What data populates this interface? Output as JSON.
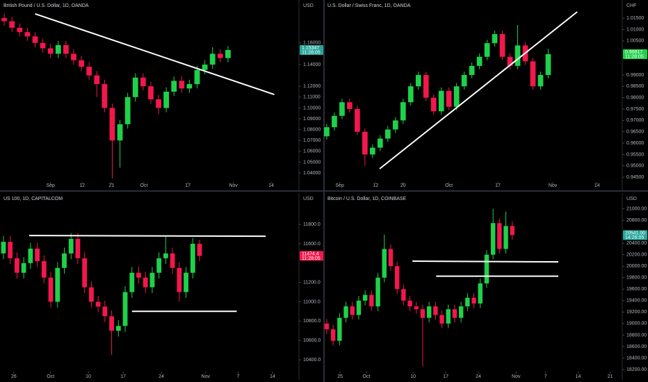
{
  "chart_data": [
    {
      "type": "candlestick",
      "title": "British Pound / U.S. Dollar, 1D, OANDA",
      "unit": "USD",
      "up_color": "#1fd14a",
      "down_color": "#f2174c",
      "line_color": "#ffffff",
      "open": [
        1.183,
        1.18,
        1.174,
        1.17,
        1.166,
        1.16,
        1.155,
        1.15,
        1.158,
        1.15,
        1.144,
        1.138,
        1.13,
        1.122,
        1.1,
        1.07,
        1.085,
        1.11,
        1.128,
        1.12,
        1.108,
        1.1,
        1.115,
        1.125,
        1.118,
        1.122,
        1.135,
        1.14,
        1.15,
        1.146
      ],
      "high": [
        1.187,
        1.184,
        1.178,
        1.174,
        1.17,
        1.164,
        1.159,
        1.162,
        1.162,
        1.154,
        1.148,
        1.142,
        1.134,
        1.126,
        1.104,
        1.089,
        1.114,
        1.132,
        1.132,
        1.124,
        1.112,
        1.119,
        1.129,
        1.129,
        1.126,
        1.139,
        1.144,
        1.156,
        1.154,
        1.157
      ],
      "low": [
        1.176,
        1.17,
        1.166,
        1.162,
        1.156,
        1.151,
        1.146,
        1.146,
        1.146,
        1.14,
        1.134,
        1.126,
        1.11,
        1.096,
        1.035,
        1.045,
        1.081,
        1.106,
        1.116,
        1.104,
        1.094,
        1.096,
        1.111,
        1.114,
        1.114,
        1.118,
        1.131,
        1.136,
        1.142,
        1.142
      ],
      "close": [
        1.18,
        1.174,
        1.17,
        1.166,
        1.16,
        1.155,
        1.15,
        1.158,
        1.15,
        1.144,
        1.138,
        1.13,
        1.122,
        1.1,
        1.07,
        1.085,
        1.11,
        1.128,
        1.12,
        1.108,
        1.1,
        1.115,
        1.125,
        1.118,
        1.122,
        1.135,
        1.14,
        1.15,
        1.146,
        1.15347
      ],
      "xlim": [
        -0.55,
        38.2
      ],
      "xticks": [
        {
          "value": 6.0,
          "label": "Sep"
        },
        {
          "value": 10.1,
          "label": "12"
        },
        {
          "value": 13.9,
          "label": "21"
        },
        {
          "value": 18.1,
          "label": "Oct"
        },
        {
          "value": 23.8,
          "label": "17"
        },
        {
          "value": 29.7,
          "label": "Nov"
        },
        {
          "value": 34.6,
          "label": "14"
        }
      ],
      "ylim": [
        1.0317,
        1.1996
      ],
      "yticks": [
        {
          "value": 1.04,
          "label": "1.04000"
        },
        {
          "value": 1.05,
          "label": "1.05000"
        },
        {
          "value": 1.06,
          "label": "1.06000"
        },
        {
          "value": 1.07,
          "label": "1.07000"
        },
        {
          "value": 1.08,
          "label": "1.08000"
        },
        {
          "value": 1.09,
          "label": "1.09000"
        },
        {
          "value": 1.1,
          "label": "1.10000"
        },
        {
          "value": 1.11,
          "label": "1.11000"
        },
        {
          "value": 1.12,
          "label": "1.12000"
        },
        {
          "value": 1.14,
          "label": "1.14000"
        },
        {
          "value": 1.16,
          "label": "1.16000"
        }
      ],
      "last_label": "1.15347",
      "countdown": "11:28:05",
      "last_color": "#26a69a",
      "lines": [
        {
          "x": [
            4.0,
            35.0
          ],
          "y": [
            1.1868,
            1.1124
          ]
        }
      ]
    },
    {
      "type": "candlestick",
      "title": "U.S. Dollar / Swiss Franc, 1D, OANDA",
      "unit": "CHF",
      "up_color": "#1fd14a",
      "down_color": "#f2174c",
      "line_color": "#ffffff",
      "open": [
        0.963,
        0.967,
        0.972,
        0.978,
        0.975,
        0.965,
        0.955,
        0.958,
        0.962,
        0.966,
        0.97,
        0.978,
        0.985,
        0.99,
        0.98,
        0.974,
        0.983,
        0.976,
        0.985,
        0.99,
        0.994,
        0.998,
        1.004,
        1.008,
        0.998,
        0.994,
        1.003,
        0.996,
        0.985,
        0.99
      ],
      "high": [
        0.9685,
        0.9735,
        0.9795,
        0.9795,
        0.9765,
        0.9665,
        0.9595,
        0.9635,
        0.9675,
        0.9715,
        0.9795,
        0.9865,
        0.9915,
        0.9915,
        0.9815,
        0.9845,
        0.9845,
        0.9865,
        0.9915,
        0.9955,
        0.9995,
        1.0055,
        1.0095,
        1.0095,
        0.9995,
        1.012,
        1.0045,
        0.9975,
        0.9915,
        1.0015
      ],
      "low": [
        0.9615,
        0.9655,
        0.9705,
        0.9735,
        0.9635,
        0.95,
        0.9535,
        0.9565,
        0.9605,
        0.9645,
        0.9685,
        0.9765,
        0.9835,
        0.9785,
        0.9725,
        0.9725,
        0.9745,
        0.9745,
        0.9835,
        0.9885,
        0.9925,
        0.9965,
        1.0025,
        0.9965,
        0.9925,
        0.9925,
        0.9945,
        0.9835,
        0.9835,
        0.9885
      ],
      "close": [
        0.967,
        0.972,
        0.978,
        0.975,
        0.965,
        0.955,
        0.958,
        0.962,
        0.966,
        0.97,
        0.978,
        0.985,
        0.99,
        0.98,
        0.974,
        0.983,
        0.976,
        0.985,
        0.99,
        0.994,
        0.998,
        1.004,
        1.008,
        0.998,
        0.994,
        1.003,
        0.996,
        0.985,
        0.99,
        0.99917
      ],
      "xlim": [
        -0.36,
        38.7
      ],
      "xticks": [
        {
          "value": 1.7,
          "label": "Sep"
        },
        {
          "value": 6.4,
          "label": "12"
        },
        {
          "value": 10.0,
          "label": "20"
        },
        {
          "value": 16.0,
          "label": "Oct"
        },
        {
          "value": 22.4,
          "label": "17"
        },
        {
          "value": 29.6,
          "label": "Nov"
        },
        {
          "value": 35.4,
          "label": "14"
        }
      ],
      "ylim": [
        0.9429,
        1.023
      ],
      "yticks": [
        {
          "value": 0.945,
          "label": "0.94500"
        },
        {
          "value": 0.95,
          "label": "0.95000"
        },
        {
          "value": 0.955,
          "label": "0.95500"
        },
        {
          "value": 0.96,
          "label": "0.96000"
        },
        {
          "value": 0.965,
          "label": "0.96500"
        },
        {
          "value": 0.97,
          "label": "0.97000"
        },
        {
          "value": 0.975,
          "label": "0.97500"
        },
        {
          "value": 0.98,
          "label": "0.98000"
        },
        {
          "value": 0.985,
          "label": "0.98500"
        },
        {
          "value": 0.99,
          "label": "0.99000"
        },
        {
          "value": 1.005,
          "label": "1.00500"
        },
        {
          "value": 1.01,
          "label": "1.01000"
        },
        {
          "value": 1.015,
          "label": "1.01500"
        }
      ],
      "last_label": "0.99917",
      "countdown": "11:28:05",
      "last_color": "#1fd14a",
      "lines": [
        {
          "x": [
            6.93,
            32.8
          ],
          "y": [
            0.9487,
            1.0178
          ]
        }
      ]
    },
    {
      "type": "candlestick",
      "title": "US 100, 1D, CAPITALCOM",
      "unit": "USD",
      "up_color": "#1fd14a",
      "down_color": "#f2174c",
      "line_color": "#ffffff",
      "open": [
        11500,
        11620,
        11450,
        11300,
        11400,
        11550,
        11420,
        11250,
        11000,
        11350,
        11500,
        11650,
        11450,
        11150,
        11000,
        10950,
        10850,
        10700,
        10750,
        11100,
        11300,
        11250,
        11150,
        11300,
        11450,
        11500,
        11350,
        11100,
        11300,
        11600
      ],
      "high": [
        11680,
        11680,
        11510,
        11460,
        11610,
        11610,
        11480,
        11310,
        11410,
        11560,
        11710,
        11710,
        11510,
        11210,
        11060,
        11010,
        10910,
        10810,
        11160,
        11360,
        11360,
        11310,
        11360,
        11510,
        11680,
        11560,
        11410,
        11360,
        11660,
        11640
      ],
      "low": [
        11440,
        11390,
        11240,
        11240,
        11340,
        11360,
        11190,
        10940,
        10940,
        11290,
        11440,
        11390,
        11090,
        10940,
        10890,
        10790,
        10450,
        10640,
        10690,
        11040,
        11190,
        11090,
        11090,
        11240,
        11390,
        11290,
        11000,
        11040,
        11240,
        11420
      ],
      "close": [
        11620,
        11450,
        11300,
        11400,
        11550,
        11420,
        11250,
        11000,
        11350,
        11500,
        11650,
        11450,
        11150,
        11000,
        10950,
        10850,
        10700,
        10750,
        11100,
        11300,
        11250,
        11150,
        11300,
        11450,
        11500,
        11350,
        11100,
        11300,
        11600,
        11474.4
      ],
      "xlim": [
        -0.51,
        43.7
      ],
      "xticks": [
        {
          "value": 1.54,
          "label": "26"
        },
        {
          "value": 6.97,
          "label": "Oct"
        },
        {
          "value": 12.55,
          "label": "10"
        },
        {
          "value": 17.7,
          "label": "17"
        },
        {
          "value": 23.35,
          "label": "24"
        },
        {
          "value": 29.9,
          "label": "Nov"
        },
        {
          "value": 34.7,
          "label": "7"
        },
        {
          "value": 39.8,
          "label": "14"
        }
      ],
      "ylim": [
        10278,
        12124
      ],
      "yticks": [
        {
          "value": 10400,
          "label": "10400.0"
        },
        {
          "value": 10600,
          "label": "10600.0"
        },
        {
          "value": 10800,
          "label": "10800.0"
        },
        {
          "value": 11000,
          "label": "11000.0"
        },
        {
          "value": 11200,
          "label": "11200.0"
        },
        {
          "value": 11600,
          "label": "11600.0"
        },
        {
          "value": 11800,
          "label": "11800.0"
        }
      ],
      "last_label": "11474.4",
      "countdown": "11:28:05",
      "last_color": "#f2174c",
      "lines": [
        {
          "x": [
            3.8,
            38.8
          ],
          "y": [
            11685,
            11678
          ]
        },
        {
          "x": [
            19.0,
            34.5
          ],
          "y": [
            10901,
            10901
          ]
        }
      ]
    },
    {
      "type": "candlestick",
      "title": "Bitcoin / U.S. Dollar, 1D, COINBASE",
      "unit": "USD",
      "up_color": "#1fd14a",
      "down_color": "#f2174c",
      "line_color": "#ffffff",
      "open": [
        19000,
        18900,
        18700,
        19100,
        19300,
        19150,
        19400,
        19500,
        19300,
        19800,
        20300,
        20000,
        19600,
        19400,
        19300,
        19250,
        19100,
        19300,
        19150,
        19000,
        19250,
        19100,
        19300,
        19450,
        19350,
        19700,
        20200,
        20750,
        20300,
        20700
      ],
      "high": [
        19080,
        18980,
        19180,
        19380,
        19380,
        19480,
        19580,
        19580,
        19880,
        20550,
        20380,
        20080,
        19680,
        19480,
        19380,
        19330,
        19380,
        19380,
        19230,
        19330,
        19330,
        19380,
        19530,
        19530,
        19780,
        20280,
        21000,
        20830,
        20950,
        20780
      ],
      "low": [
        18820,
        18620,
        18620,
        19020,
        19070,
        19070,
        19320,
        19220,
        19220,
        19720,
        19920,
        19520,
        19320,
        19220,
        19170,
        18250,
        19020,
        19070,
        18920,
        18920,
        19020,
        19020,
        19220,
        19270,
        19270,
        19620,
        20120,
        20220,
        20220,
        20461
      ],
      "close": [
        18900,
        18700,
        19100,
        19300,
        19150,
        19400,
        19500,
        19300,
        19800,
        20300,
        20000,
        19600,
        19400,
        19300,
        19250,
        19100,
        19300,
        19150,
        19000,
        19250,
        19100,
        19300,
        19450,
        19350,
        19700,
        20200,
        20750,
        20300,
        20700,
        20541
      ],
      "xlim": [
        -0.43,
        46.2
      ],
      "xticks": [
        {
          "value": 2.07,
          "label": "25"
        },
        {
          "value": 6.2,
          "label": "Oct"
        },
        {
          "value": 13.5,
          "label": "10"
        },
        {
          "value": 18.6,
          "label": "17"
        },
        {
          "value": 23.7,
          "label": "24"
        },
        {
          "value": 29.6,
          "label": "Nov"
        },
        {
          "value": 34.2,
          "label": "7"
        },
        {
          "value": 39.3,
          "label": "14"
        },
        {
          "value": 44.3,
          "label": "21"
        }
      ],
      "ylim": [
        18164,
        21273
      ],
      "yticks": [
        {
          "value": 18200,
          "label": "18200.00"
        },
        {
          "value": 18400,
          "label": "18400.00"
        },
        {
          "value": 18600,
          "label": "18600.00"
        },
        {
          "value": 18800,
          "label": "18800.00"
        },
        {
          "value": 19000,
          "label": "19000.00"
        },
        {
          "value": 19200,
          "label": "19200.00"
        },
        {
          "value": 19400,
          "label": "19400.00"
        },
        {
          "value": 19600,
          "label": "19600.00"
        },
        {
          "value": 19800,
          "label": "19800.00"
        },
        {
          "value": 20000,
          "label": "20000.00"
        },
        {
          "value": 20200,
          "label": "20200.00"
        },
        {
          "value": 20400,
          "label": "20400.00"
        },
        {
          "value": 20800,
          "label": "20800.00"
        },
        {
          "value": 21000,
          "label": "21000.00"
        }
      ],
      "last_label": "20541.00",
      "countdown": "14:26:05",
      "last_color": "#26a69a",
      "lines": [
        {
          "x": [
            13.4,
            36.2
          ],
          "y": [
            20087,
            20075
          ]
        },
        {
          "x": [
            17.1,
            36.2
          ],
          "y": [
            19826,
            19826
          ]
        }
      ]
    }
  ]
}
